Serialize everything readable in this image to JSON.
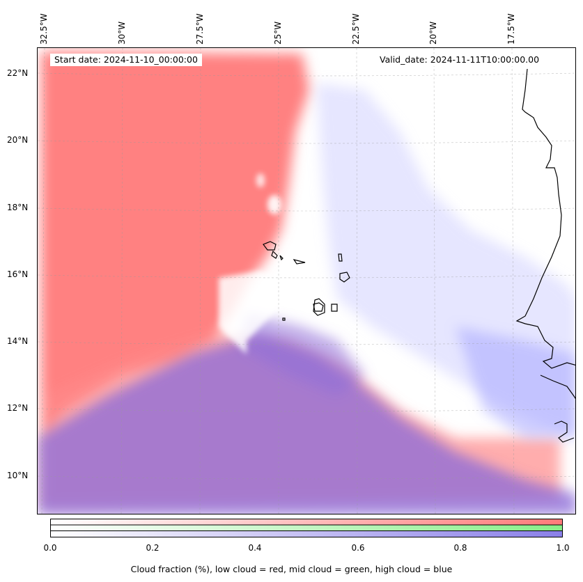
{
  "map": {
    "lon_labels": [
      "32.5°W",
      "30°W",
      "27.5°W",
      "25°W",
      "22.5°W",
      "20°W",
      "17.5°W"
    ],
    "lat_labels": [
      "22°N",
      "20°N",
      "18°N",
      "16°N",
      "14°N",
      "12°N",
      "10°N"
    ],
    "start_date": "Start date: 2024-11-10_00:00:00",
    "valid_date": "Valid_date: 2024-11-11T10:00:00.00",
    "colors": {
      "low": "#ff7a7a",
      "mid": "#88ee88",
      "high": "#8a80e8",
      "coast": "#000000"
    }
  },
  "colorbar": {
    "ticks": [
      "0.0",
      "0.2",
      "0.4",
      "0.6",
      "0.8",
      "1.0"
    ],
    "label": "Cloud fraction (%), low cloud = red, mid cloud = green, high cloud = blue"
  }
}
